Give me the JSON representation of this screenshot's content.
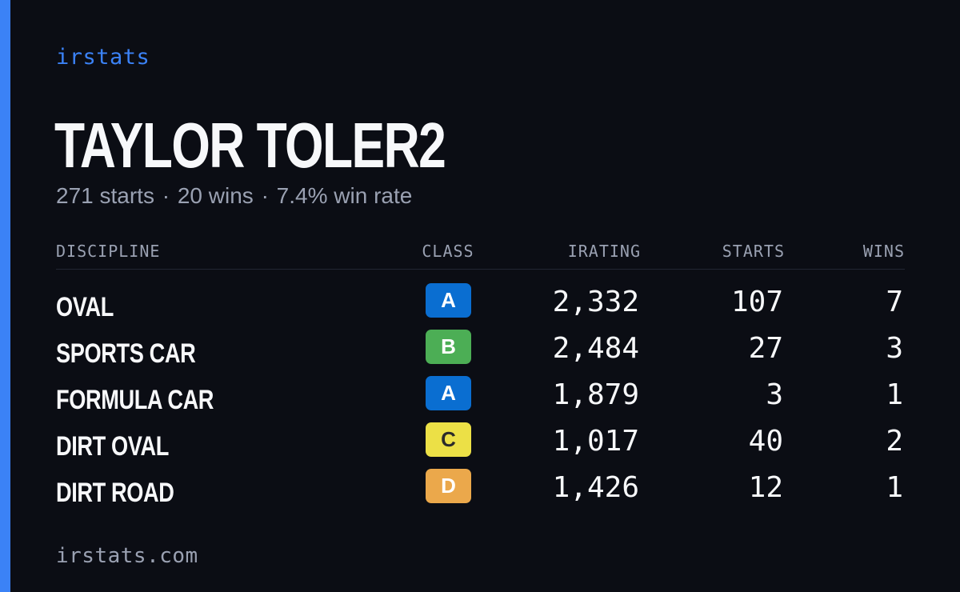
{
  "brand": "irstats",
  "driver": {
    "name": "TAYLOR TOLER2"
  },
  "summary": {
    "starts": "271 starts",
    "wins": "20 wins",
    "win_rate": "7.4% win rate",
    "separator": "·"
  },
  "table": {
    "headers": {
      "discipline": "DISCIPLINE",
      "class": "CLASS",
      "irating": "IRATING",
      "starts": "STARTS",
      "wins": "WINS"
    },
    "rows": [
      {
        "discipline": "OVAL",
        "class": "A",
        "class_color": "#0a6ed1",
        "class_text_color": "#ffffff",
        "irating": "2,332",
        "starts": "107",
        "wins": "7"
      },
      {
        "discipline": "SPORTS CAR",
        "class": "B",
        "class_color": "#4cae55",
        "class_text_color": "#ffffff",
        "irating": "2,484",
        "starts": "27",
        "wins": "3"
      },
      {
        "discipline": "FORMULA CAR",
        "class": "A",
        "class_color": "#0a6ed1",
        "class_text_color": "#ffffff",
        "irating": "1,879",
        "starts": "3",
        "wins": "1"
      },
      {
        "discipline": "DIRT OVAL",
        "class": "C",
        "class_color": "#ece046",
        "class_text_color": "#2b2b2b",
        "irating": "1,017",
        "starts": "40",
        "wins": "2"
      },
      {
        "discipline": "DIRT ROAD",
        "class": "D",
        "class_color": "#eba84b",
        "class_text_color": "#ffffff",
        "irating": "1,426",
        "starts": "12",
        "wins": "1"
      }
    ]
  },
  "footer": {
    "url": "irstats.com"
  },
  "colors": {
    "background": "#0b0d14",
    "accent": "#3b82f6",
    "text_primary": "#f7f8fa",
    "text_secondary": "#9aa1b2"
  }
}
